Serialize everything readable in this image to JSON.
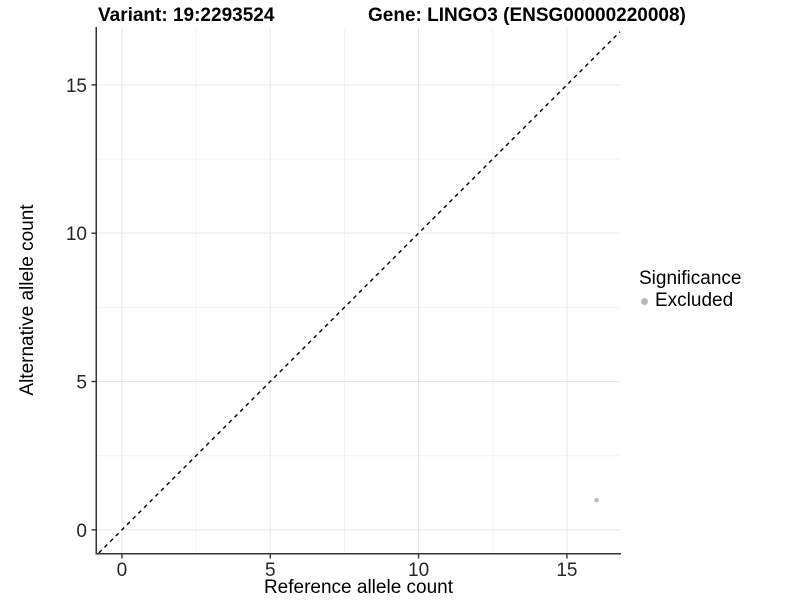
{
  "titles": {
    "variant": "Variant: 19:2293524",
    "gene": "Gene: LINGO3 (ENSG00000220008)"
  },
  "chart_data": {
    "type": "scatter",
    "xlabel": "Reference allele count",
    "ylabel": "Alternative allele count",
    "x_ticks": [
      0,
      5,
      10,
      15
    ],
    "y_ticks": [
      0,
      5,
      10,
      15
    ],
    "x_minor_ticks": [
      2.5,
      7.5,
      12.5
    ],
    "y_minor_ticks": [
      2.5,
      7.5,
      12.5
    ],
    "xlim": [
      -0.84,
      16.79
    ],
    "ylim": [
      -0.78,
      16.95
    ],
    "points": [
      {
        "x": 16,
        "y": 1,
        "series": "Excluded"
      }
    ],
    "reference_line": {
      "slope": 1,
      "intercept": 0,
      "style": "dashed",
      "equation": "y = x"
    },
    "legend": {
      "title": "Significance",
      "position": "right",
      "items": [
        {
          "label": "Excluded",
          "color": "#b8b8b8"
        }
      ]
    },
    "grid": {
      "major": true,
      "minor": true
    }
  },
  "colors": {
    "background": "#ffffff",
    "grid_major": "#e6e6e6",
    "grid_minor": "#f2f2f2",
    "axis_line": "#333333",
    "tick_mark": "#333333",
    "tick_label": "#262626",
    "text": "#000000",
    "reference_line": "#000000",
    "point": "#bdbdbd"
  }
}
